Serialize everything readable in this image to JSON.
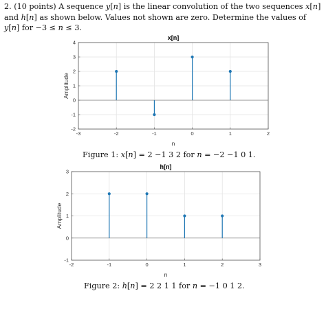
{
  "problem": {
    "lead": "2. (10 points) A sequence ",
    "y": "y",
    "n": "n",
    "mid1": " is the linear convolution of the two sequences ",
    "x": "x",
    "and": " and ",
    "h": "h",
    "as": " as shown below. Values not shown are zero. Determine the values of ",
    "for": " for −3 ≤ ",
    "range_end": " ≤ 3."
  },
  "chart_data": [
    {
      "type": "stem",
      "title": "x[n]",
      "xlabel": "n",
      "ylabel": "Amplitude",
      "xlim": [
        -3,
        2
      ],
      "ylim": [
        -2,
        4
      ],
      "xticks": [
        "-3",
        "-2",
        "-1",
        "0",
        "1",
        "2"
      ],
      "yticks": [
        "-2",
        "-1",
        "0",
        "1",
        "2",
        "3",
        "4"
      ],
      "grid": true,
      "x": [
        -2,
        -1,
        0,
        1
      ],
      "values": [
        2,
        -1,
        3,
        2
      ],
      "color": "#1f77b4"
    },
    {
      "type": "stem",
      "title": "h[n]",
      "xlabel": "n",
      "ylabel": "Amplitude",
      "xlim": [
        -2,
        3
      ],
      "ylim": [
        -1,
        3
      ],
      "xticks": [
        "-2",
        "-1",
        "0",
        "1",
        "2",
        "3"
      ],
      "yticks": [
        "-1",
        "0",
        "1",
        "2",
        "3"
      ],
      "grid": true,
      "x": [
        -1,
        0,
        1,
        2
      ],
      "values": [
        2,
        2,
        1,
        1
      ],
      "color": "#1f77b4"
    }
  ],
  "captions": {
    "fig1_prefix": "Figure 1: ",
    "fig1_x": "x",
    "fig1_body": " = 2  −1 3 2 for ",
    "fig1_n": "n",
    "fig1_vals": " = −2  −1 0 1.",
    "fig2_prefix": "Figure 2: ",
    "fig2_h": "h",
    "fig2_body": " = 2 2 1 1 for ",
    "fig2_n": "n",
    "fig2_vals": " = −1 0 1 2."
  }
}
